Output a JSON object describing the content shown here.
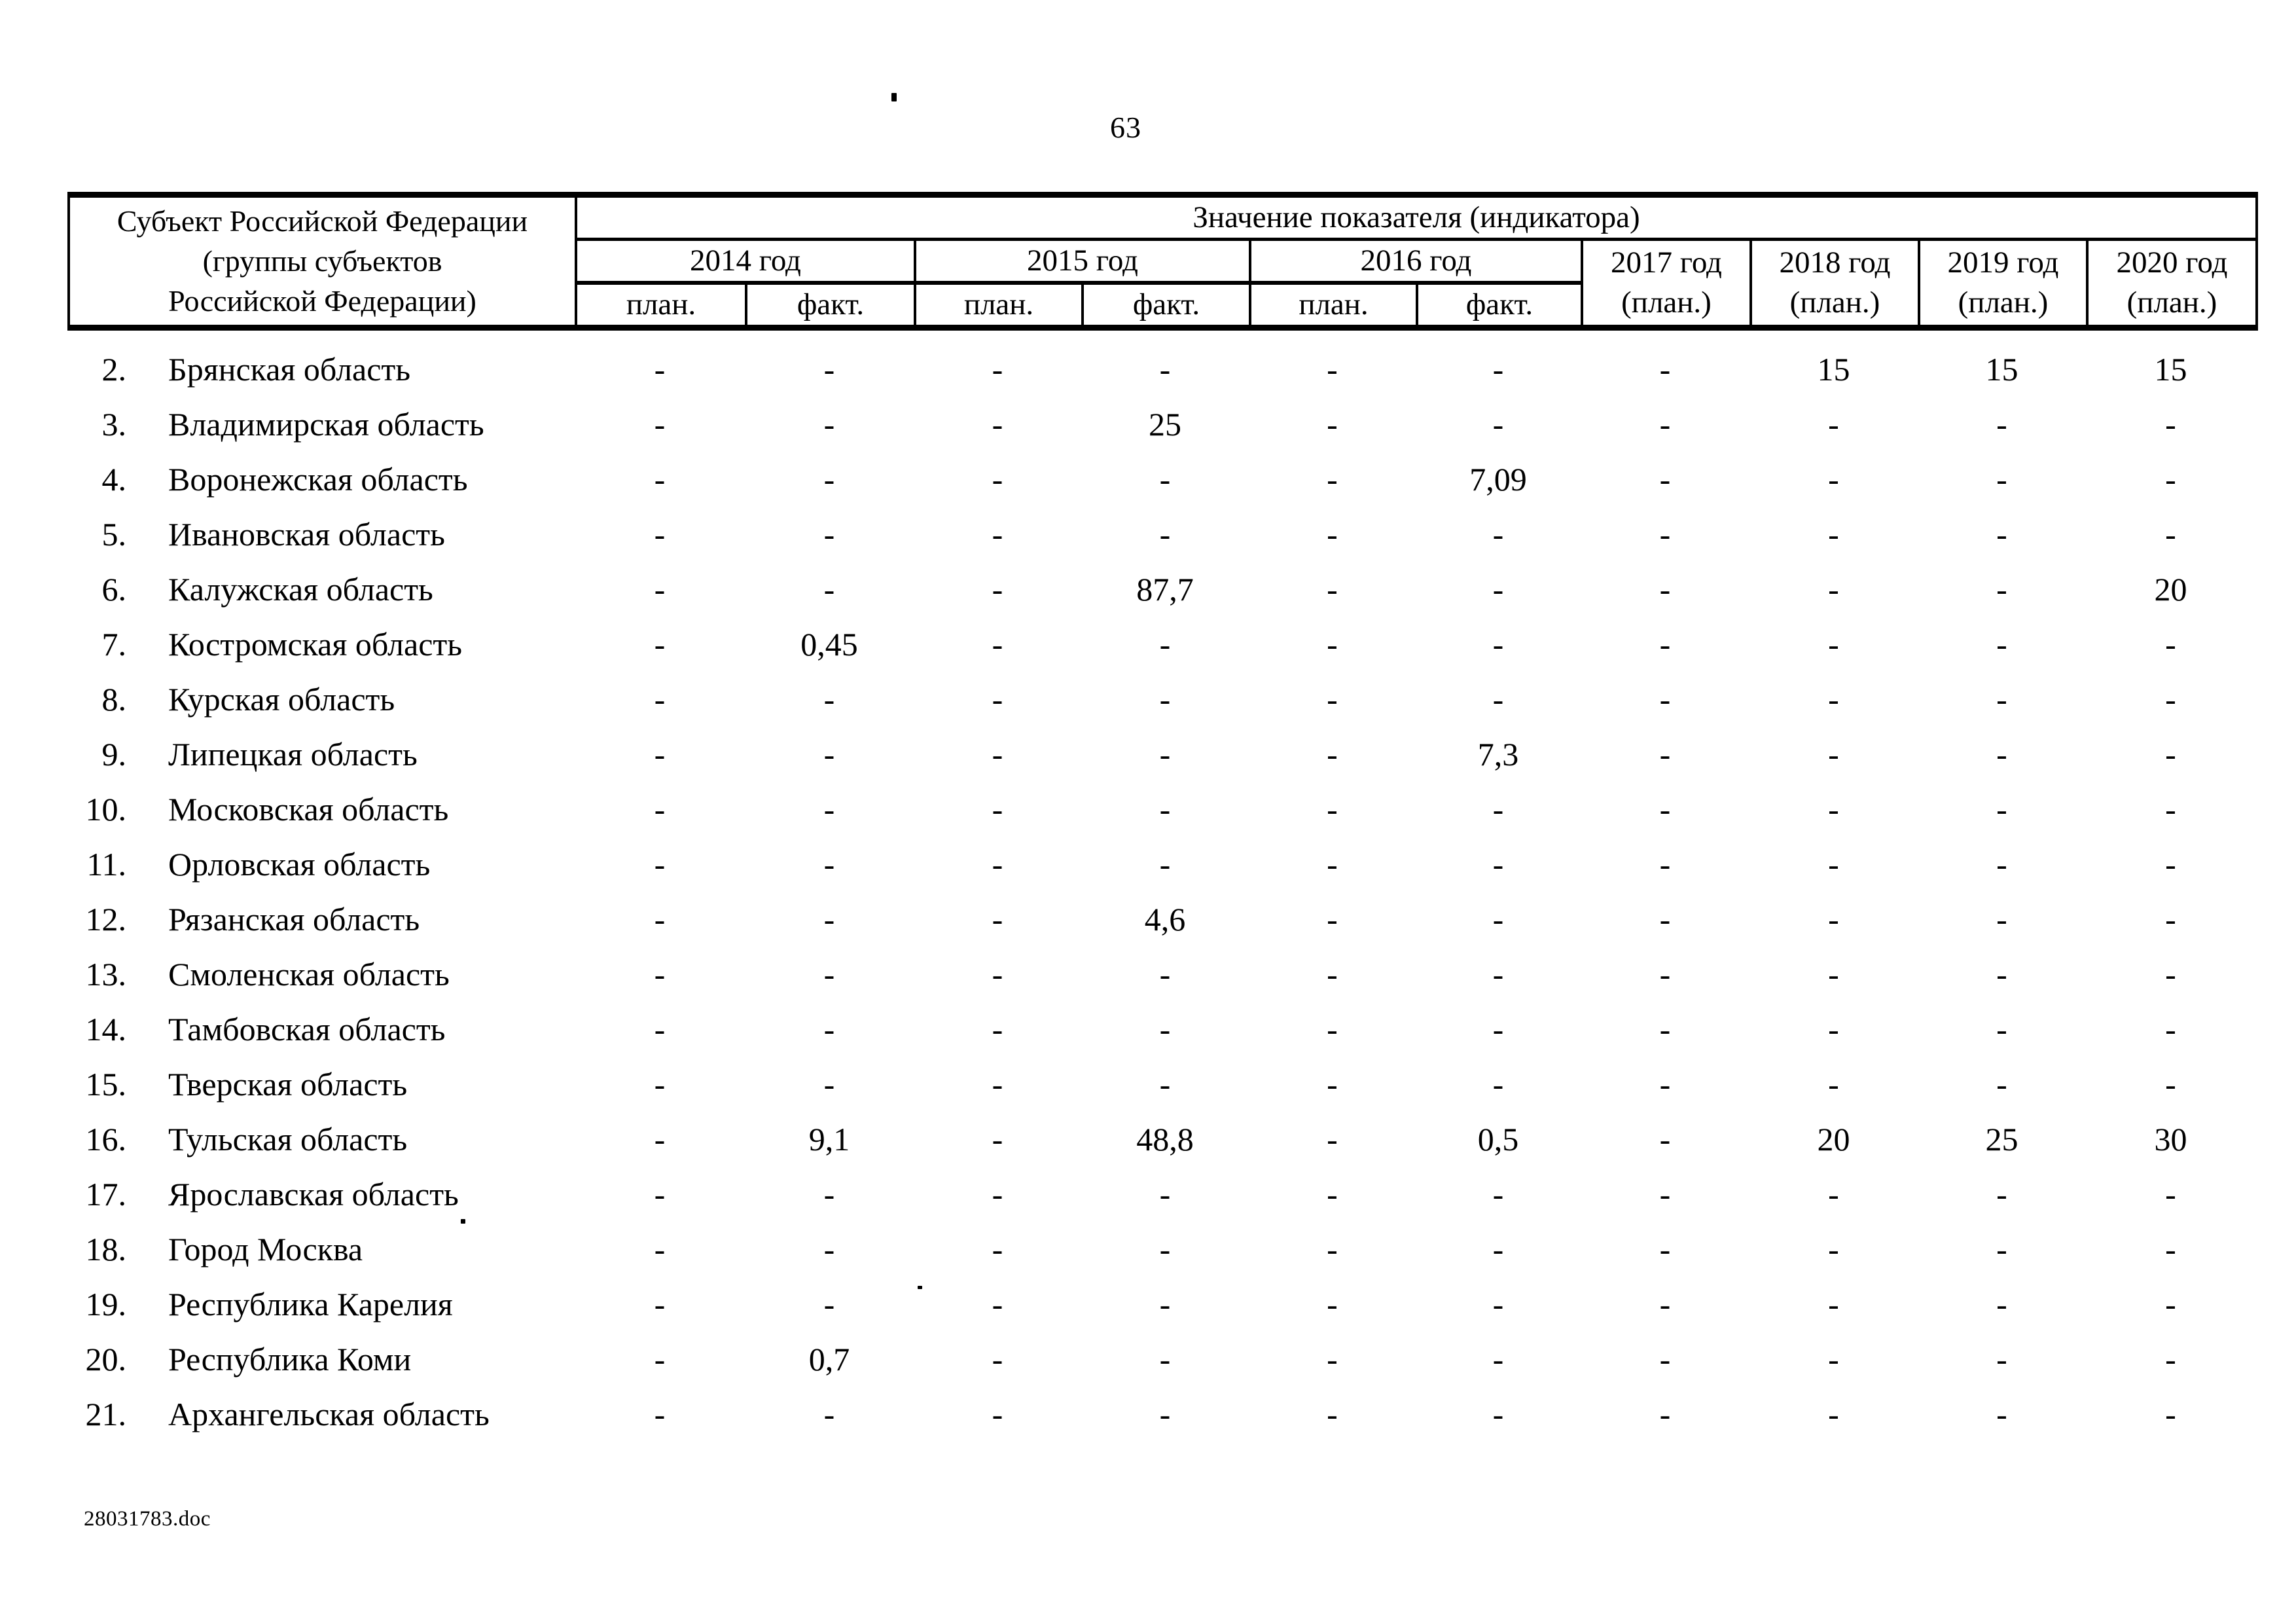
{
  "page": {
    "number": "63",
    "footer": "28031783.doc"
  },
  "table": {
    "subject_header": "Субъект Российской Федерации\n(группы субъектов\nРоссийской Федерации)",
    "value_header": "Значение показателя (индикатора)",
    "year_groups": [
      "2014 год",
      "2015 год",
      "2016 год",
      "2017 год\n(план.)",
      "2018 год\n(план.)",
      "2019 год\n(план.)",
      "2020 год\n(план.)"
    ],
    "subheaders": [
      "план.",
      "факт.",
      "план.",
      "факт.",
      "план.",
      "факт."
    ],
    "rows": [
      {
        "num": "2.",
        "name": "Брянская область",
        "values": [
          "-",
          "-",
          "-",
          "-",
          "-",
          "-",
          "-",
          "15",
          "15",
          "15"
        ]
      },
      {
        "num": "3.",
        "name": "Владимирская область",
        "values": [
          "-",
          "-",
          "-",
          "25",
          "-",
          "-",
          "-",
          "-",
          "-",
          "-"
        ]
      },
      {
        "num": "4.",
        "name": "Воронежская область",
        "values": [
          "-",
          "-",
          "-",
          "-",
          "-",
          "7,09",
          "-",
          "-",
          "-",
          "-"
        ]
      },
      {
        "num": "5.",
        "name": "Ивановская область",
        "values": [
          "-",
          "-",
          "-",
          "-",
          "-",
          "-",
          "-",
          "-",
          "-",
          "-"
        ]
      },
      {
        "num": "6.",
        "name": "Калужская область",
        "values": [
          "-",
          "-",
          "-",
          "87,7",
          "-",
          "-",
          "-",
          "-",
          "-",
          "20"
        ]
      },
      {
        "num": "7.",
        "name": "Костромская область",
        "values": [
          "-",
          "0,45",
          "-",
          "-",
          "-",
          "-",
          "-",
          "-",
          "-",
          "-"
        ]
      },
      {
        "num": "8.",
        "name": "Курская область",
        "values": [
          "-",
          "-",
          "-",
          "-",
          "-",
          "-",
          "-",
          "-",
          "-",
          "-"
        ]
      },
      {
        "num": "9.",
        "name": "Липецкая область",
        "values": [
          "-",
          "-",
          "-",
          "-",
          "-",
          "7,3",
          "-",
          "-",
          "-",
          "-"
        ]
      },
      {
        "num": "10.",
        "name": "Московская область",
        "values": [
          "-",
          "-",
          "-",
          "-",
          "-",
          "-",
          "-",
          "-",
          "-",
          "-"
        ]
      },
      {
        "num": "11.",
        "name": "Орловская область",
        "values": [
          "-",
          "-",
          "-",
          "-",
          "-",
          "-",
          "-",
          "-",
          "-",
          "-"
        ]
      },
      {
        "num": "12.",
        "name": "Рязанская область",
        "values": [
          "-",
          "-",
          "-",
          "4,6",
          "-",
          "-",
          "-",
          "-",
          "-",
          "-"
        ]
      },
      {
        "num": "13.",
        "name": "Смоленская область",
        "values": [
          "-",
          "-",
          "-",
          "-",
          "-",
          "-",
          "-",
          "-",
          "-",
          "-"
        ]
      },
      {
        "num": "14.",
        "name": "Тамбовская область",
        "values": [
          "-",
          "-",
          "-",
          "-",
          "-",
          "-",
          "-",
          "-",
          "-",
          "-"
        ]
      },
      {
        "num": "15.",
        "name": "Тверская область",
        "values": [
          "-",
          "-",
          "-",
          "-",
          "-",
          "-",
          "-",
          "-",
          "-",
          "-"
        ]
      },
      {
        "num": "16.",
        "name": "Тульская область",
        "values": [
          "-",
          "9,1",
          "-",
          "48,8",
          "-",
          "0,5",
          "-",
          "20",
          "25",
          "30"
        ]
      },
      {
        "num": "17.",
        "name": "Ярославская область",
        "values": [
          "-",
          "-",
          "-",
          "-",
          "-",
          "-",
          "-",
          "-",
          "-",
          "-"
        ]
      },
      {
        "num": "18.",
        "name": "Город Москва",
        "values": [
          "-",
          "-",
          "-",
          "-",
          "-",
          "-",
          "-",
          "-",
          "-",
          "-"
        ]
      },
      {
        "num": "19.",
        "name": "Республика Карелия",
        "values": [
          "-",
          "-",
          "-",
          "-",
          "-",
          "-",
          "-",
          "-",
          "-",
          "-"
        ]
      },
      {
        "num": "20.",
        "name": "Республика Коми",
        "values": [
          "-",
          "0,7",
          "-",
          "-",
          "-",
          "-",
          "-",
          "-",
          "-",
          "-"
        ]
      },
      {
        "num": "21.",
        "name": "Архангельская область",
        "values": [
          "-",
          "-",
          "-",
          "-",
          "-",
          "-",
          "-",
          "-",
          "-",
          "-"
        ]
      }
    ]
  }
}
